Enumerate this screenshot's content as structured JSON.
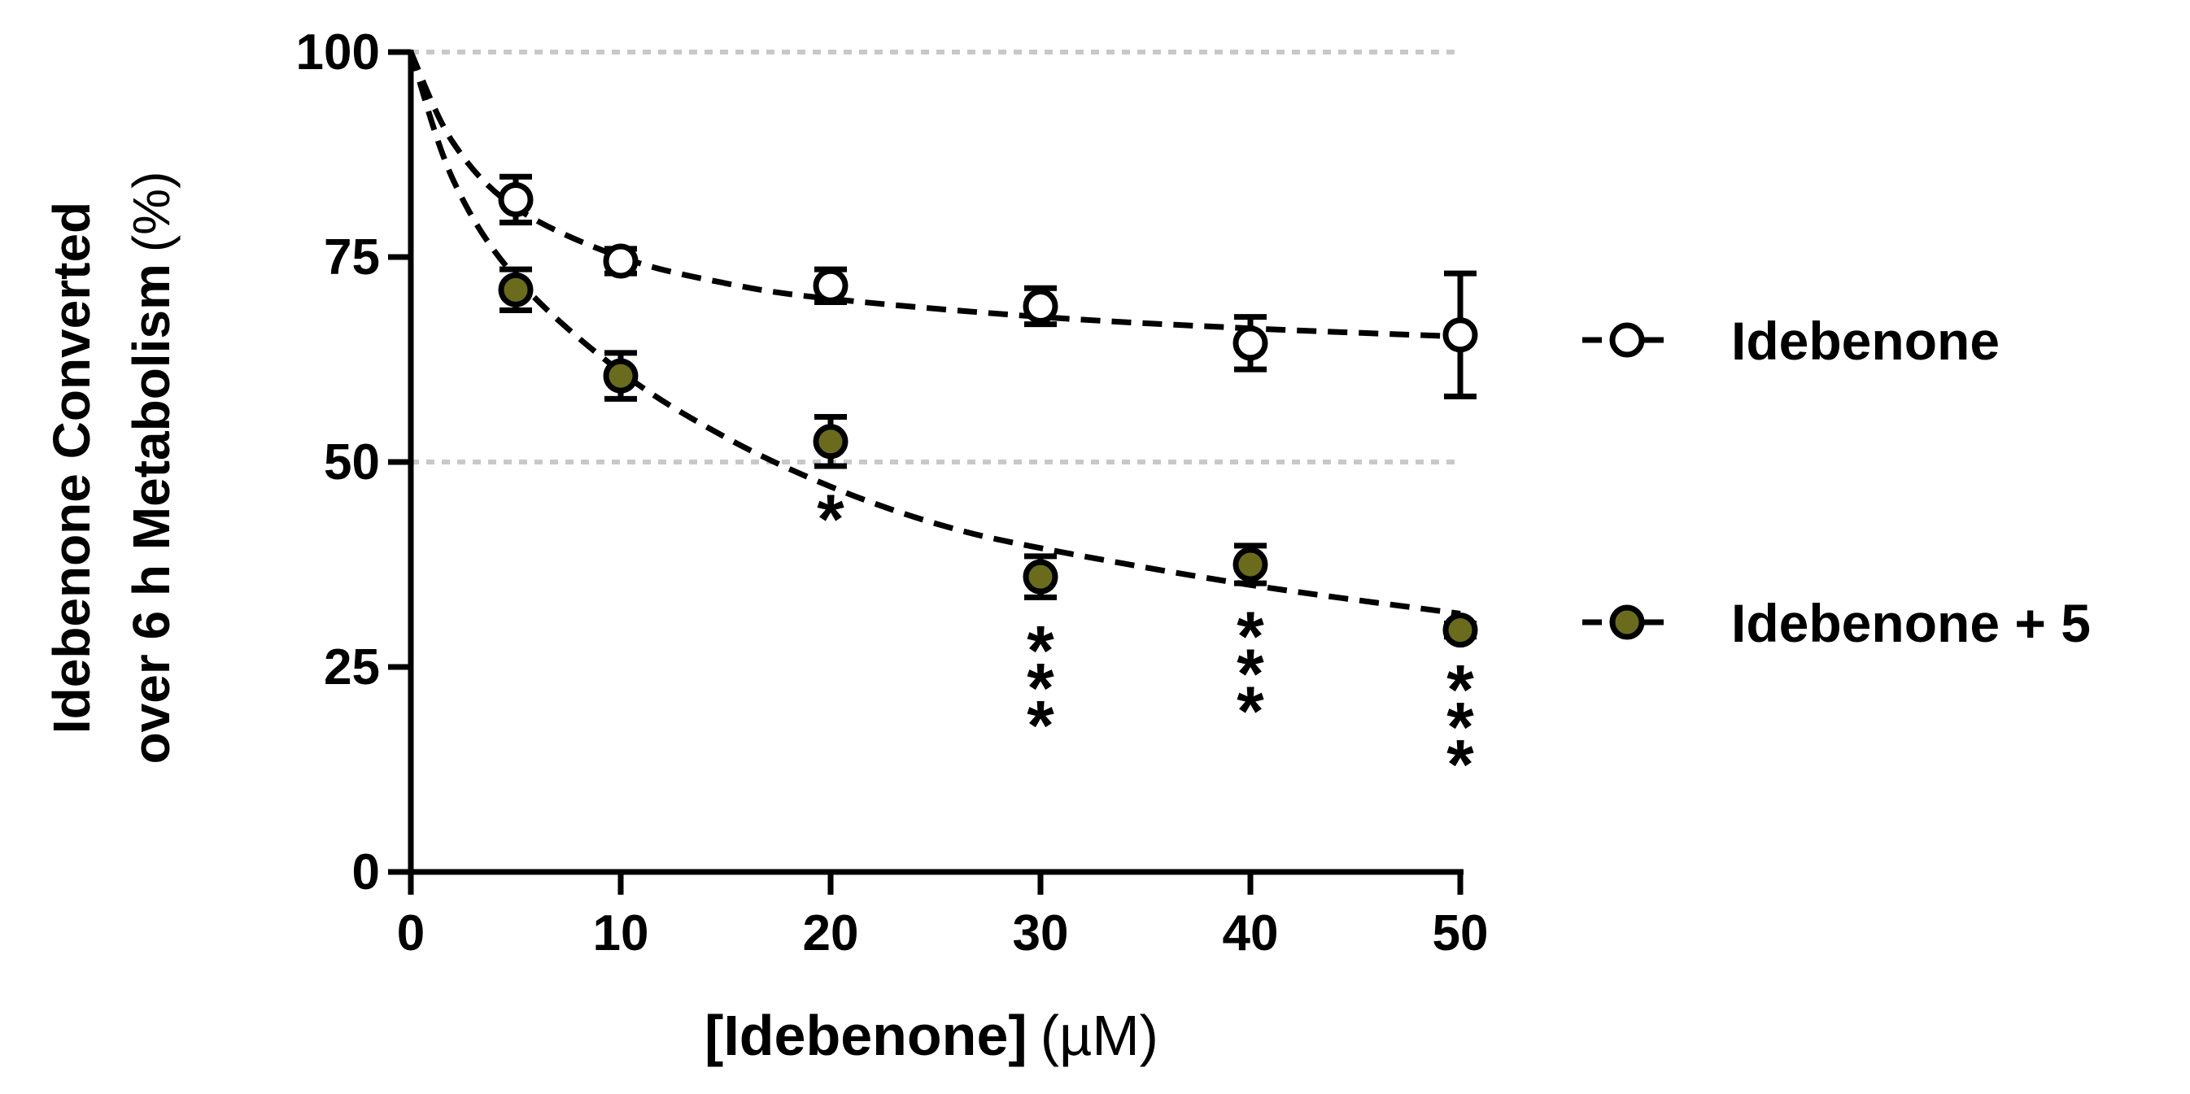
{
  "chart_data": {
    "type": "scatter",
    "title": "",
    "xlabel_bold": "[Idebenone]",
    "xlabel_unit": "(µM)",
    "ylabel_line1": "Idebenone Converted",
    "ylabel_line2_bold": "over 6 h Metabolism",
    "ylabel_line2_unit": "(%)",
    "xlim": [
      0,
      50
    ],
    "ylim": [
      0,
      100
    ],
    "xticks": [
      0,
      10,
      20,
      30,
      40,
      50
    ],
    "yticks": [
      0,
      25,
      50,
      75,
      100
    ],
    "gridlines_y": [
      50,
      100
    ],
    "legend_position": "right",
    "series": [
      {
        "name": "Idebenone",
        "marker": "open-circle",
        "color": "#000000",
        "fill": "#ffffff",
        "x": [
          5,
          10,
          20,
          30,
          40,
          50
        ],
        "y": [
          82,
          74.5,
          71.5,
          69,
          64.5,
          65.5
        ],
        "err": [
          2.8,
          1.5,
          2,
          2.2,
          3.2,
          7.5
        ],
        "fit": [
          [
            0,
            100
          ],
          [
            2,
            89
          ],
          [
            5,
            81
          ],
          [
            10,
            75
          ],
          [
            15,
            71.8
          ],
          [
            20,
            69.9
          ],
          [
            30,
            67.7
          ],
          [
            40,
            66.3
          ],
          [
            50,
            65.3
          ]
        ]
      },
      {
        "name": "Idebenone + 5",
        "marker": "filled-circle",
        "color": "#000000",
        "fill": "#6b6b1e",
        "x": [
          5,
          10,
          20,
          30,
          40,
          50
        ],
        "y": [
          71,
          60.5,
          52.5,
          36,
          37.5,
          29.5
        ],
        "err": [
          2.5,
          2.8,
          3,
          2.5,
          2.3,
          0.8
        ],
        "fit": [
          [
            0,
            100
          ],
          [
            2,
            84.5
          ],
          [
            5,
            72.5
          ],
          [
            10,
            61
          ],
          [
            15,
            53
          ],
          [
            20,
            47
          ],
          [
            25,
            42.5
          ],
          [
            30,
            39.5
          ],
          [
            40,
            35
          ],
          [
            50,
            31.5
          ]
        ]
      }
    ],
    "annotations": [
      {
        "x": 20,
        "text": "*",
        "lines": 1
      },
      {
        "x": 30,
        "text": "***",
        "lines": 3
      },
      {
        "x": 40,
        "text": "***",
        "lines": 3
      },
      {
        "x": 50,
        "text": "***",
        "lines": 3
      }
    ]
  }
}
